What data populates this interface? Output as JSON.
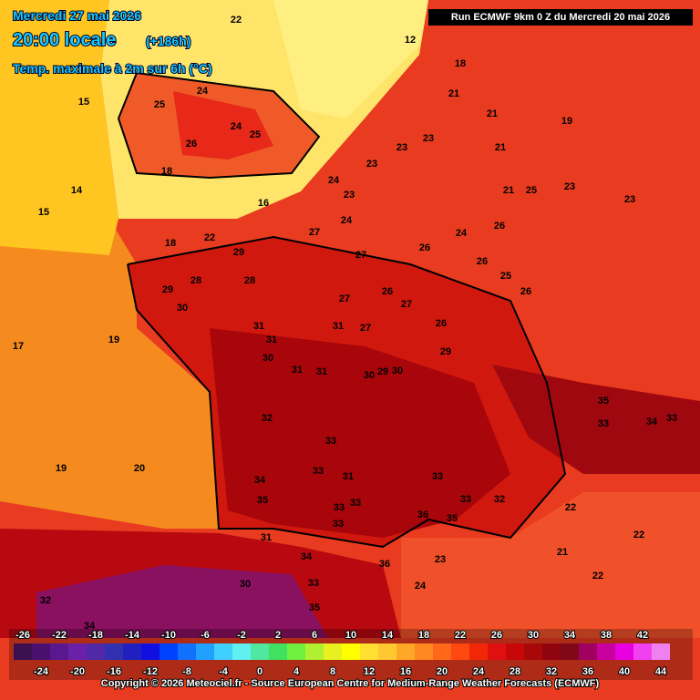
{
  "header": {
    "date": "Mercredi 27 mai 2026",
    "time": "20:00 locale",
    "lead": "(+186h)",
    "field": "Temp. maximale à 2m sur 6h (°C)"
  },
  "run": "Run ECMWF 9km 0 Z du Mercredi 20 mai 2026",
  "map_labels": [
    22,
    12,
    18,
    21,
    21,
    19,
    23,
    23,
    21,
    23,
    24,
    23,
    21,
    25,
    23,
    23,
    24,
    27,
    26,
    24,
    26,
    27,
    26,
    25,
    26,
    29,
    28,
    29,
    30,
    28,
    27,
    26,
    27,
    26,
    31,
    31,
    27,
    31,
    30,
    31,
    31,
    30,
    29,
    30,
    29,
    32,
    33,
    33,
    34,
    35,
    33,
    33,
    31,
    33,
    33,
    32,
    36,
    35,
    33,
    31,
    34,
    36,
    35,
    33,
    30,
    32,
    34,
    23,
    24,
    22,
    21,
    22,
    22,
    34,
    33,
    35,
    33,
    20,
    19,
    19,
    17,
    15,
    14,
    15,
    24,
    25,
    25,
    24,
    26,
    18,
    16,
    18,
    22
  ],
  "legend": {
    "labels": [
      -26,
      -24,
      -22,
      -20,
      -18,
      -16,
      -14,
      -12,
      -10,
      -8,
      -6,
      -4,
      -2,
      0,
      2,
      4,
      6,
      8,
      10,
      12,
      14,
      16,
      18,
      20,
      22,
      24,
      26,
      28,
      30,
      32,
      34,
      36,
      38,
      40,
      42,
      44
    ],
    "colors": [
      "#3c1050",
      "#4a1070",
      "#5a1890",
      "#6a20a8",
      "#5028a8",
      "#3030b0",
      "#2020c0",
      "#1010e0",
      "#0040ff",
      "#1070ff",
      "#20a0ff",
      "#40d0ff",
      "#60f0f0",
      "#50e8a0",
      "#40e060",
      "#70f040",
      "#b0f030",
      "#e8f020",
      "#ffff00",
      "#ffe030",
      "#ffc830",
      "#ffa828",
      "#ff8820",
      "#ff6818",
      "#ff4810",
      "#f02808",
      "#e01010",
      "#c80808",
      "#a80808",
      "#900410",
      "#800818",
      "#a00060",
      "#c800a0",
      "#e800e0",
      "#f040f0",
      "#f080f0"
    ]
  },
  "copyright": "Copyright © 2026 Meteociel.fr - Source European Centre for Medium-Range Weather Forecasts (ECMWF)"
}
